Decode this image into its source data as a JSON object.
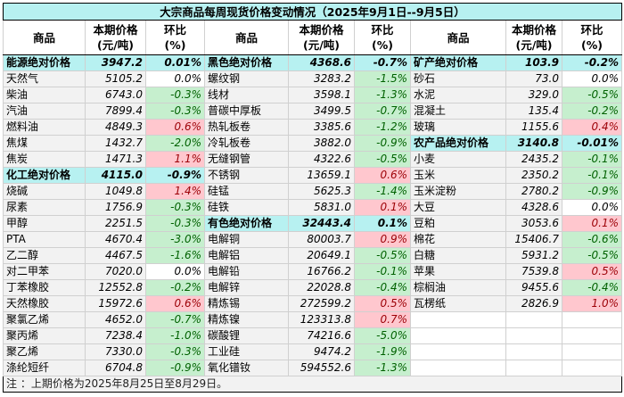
{
  "title": "大宗商品每周现货价格变动情况（2025年9月1日--9月5日）",
  "headers": {
    "name": "商品",
    "price": [
      "本期价格",
      "(元/吨)"
    ],
    "change": [
      "环比",
      "(%)"
    ]
  },
  "colors": {
    "group_bg": "#b7f1f1",
    "up_bg": "#ffc7ce",
    "up_text": "#9c0006",
    "down_bg": "#c6efce",
    "down_text": "#006100"
  },
  "columns": [
    [
      {
        "name": "能源绝对价格",
        "price": "3947.2",
        "change": "0.01%",
        "group": true
      },
      {
        "name": "天然气",
        "price": "5105.2",
        "change": "0.0%"
      },
      {
        "name": "柴油",
        "price": "6743.0",
        "change": "-0.3%"
      },
      {
        "name": "汽油",
        "price": "7899.4",
        "change": "-0.3%"
      },
      {
        "name": "燃料油",
        "price": "4849.3",
        "change": "0.6%"
      },
      {
        "name": "焦煤",
        "price": "1432.7",
        "change": "-2.0%"
      },
      {
        "name": "焦炭",
        "price": "1471.3",
        "change": "1.1%"
      },
      {
        "name": "化工绝对价格",
        "price": "4115.0",
        "change": "-0.9%",
        "group": true
      },
      {
        "name": "烧碱",
        "price": "1049.8",
        "change": "1.4%"
      },
      {
        "name": "尿素",
        "price": "1756.9",
        "change": "-0.3%"
      },
      {
        "name": "甲醇",
        "price": "2251.5",
        "change": "-0.3%"
      },
      {
        "name": "PTA",
        "price": "4670.4",
        "change": "-3.0%"
      },
      {
        "name": "乙二醇",
        "price": "4467.5",
        "change": "-1.6%"
      },
      {
        "name": "对二甲苯",
        "price": "7020.0",
        "change": "0.0%"
      },
      {
        "name": "丁苯橡胶",
        "price": "12552.8",
        "change": "-0.2%"
      },
      {
        "name": "天然橡胶",
        "price": "15972.6",
        "change": "0.6%"
      },
      {
        "name": "聚氯乙烯",
        "price": "4652.0",
        "change": "-0.7%"
      },
      {
        "name": "聚丙烯",
        "price": "7238.4",
        "change": "-1.0%"
      },
      {
        "name": "聚乙烯",
        "price": "7330.0",
        "change": "-0.3%"
      },
      {
        "name": "涤纶短纤",
        "price": "6704.8",
        "change": "-0.9%"
      }
    ],
    [
      {
        "name": "黑色绝对价格",
        "price": "4368.6",
        "change": "-0.7%",
        "group": true
      },
      {
        "name": "螺纹钢",
        "price": "3283.2",
        "change": "-1.5%"
      },
      {
        "name": "线材",
        "price": "3598.1",
        "change": "-1.3%"
      },
      {
        "name": "普碳中厚板",
        "price": "3499.5",
        "change": "-0.7%"
      },
      {
        "name": "热轧板卷",
        "price": "3385.6",
        "change": "-1.2%"
      },
      {
        "name": "冷轧板卷",
        "price": "3882.0",
        "change": "-0.9%"
      },
      {
        "name": "无缝钢管",
        "price": "4322.6",
        "change": "-0.5%"
      },
      {
        "name": "不锈钢",
        "price": "13659.1",
        "change": "0.6%"
      },
      {
        "name": "硅锰",
        "price": "5625.3",
        "change": "-1.4%"
      },
      {
        "name": "硅铁",
        "price": "5831.0",
        "change": "0.1%"
      },
      {
        "name": "有色绝对价格",
        "price": "32443.4",
        "change": "0.1%",
        "group": true
      },
      {
        "name": "电解铜",
        "price": "80003.7",
        "change": "0.9%"
      },
      {
        "name": "电解铝",
        "price": "20649.1",
        "change": "-0.5%"
      },
      {
        "name": "电解铅",
        "price": "16766.2",
        "change": "-0.1%"
      },
      {
        "name": "电解锌",
        "price": "22028.8",
        "change": "-0.4%"
      },
      {
        "name": "精炼锡",
        "price": "272599.2",
        "change": "0.5%"
      },
      {
        "name": "精炼镍",
        "price": "123313.8",
        "change": "0.7%"
      },
      {
        "name": "碳酸锂",
        "price": "74216.6",
        "change": "-5.0%"
      },
      {
        "name": "工业硅",
        "price": "9474.2",
        "change": "-1.9%"
      },
      {
        "name": "氧化镨钕",
        "price": "594552.6",
        "change": "-1.3%"
      }
    ],
    [
      {
        "name": "矿产绝对价格",
        "price": "103.9",
        "change": "-0.2%",
        "group": true
      },
      {
        "name": "砂石",
        "price": "73.0",
        "change": "0.0%"
      },
      {
        "name": "水泥",
        "price": "329.0",
        "change": "-0.5%"
      },
      {
        "name": "混凝土",
        "price": "135.4",
        "change": "-0.2%"
      },
      {
        "name": "玻璃",
        "price": "1155.6",
        "change": "0.4%"
      },
      {
        "name": "农产品绝对价格",
        "price": "3140.8",
        "change": "-0.01%",
        "group": true
      },
      {
        "name": "小麦",
        "price": "2435.2",
        "change": "-0.1%"
      },
      {
        "name": "玉米",
        "price": "2350.2",
        "change": "-0.1%"
      },
      {
        "name": "玉米淀粉",
        "price": "2780.2",
        "change": "-0.9%"
      },
      {
        "name": "大豆",
        "price": "4328.6",
        "change": "0.0%"
      },
      {
        "name": "豆粕",
        "price": "3053.6",
        "change": "0.1%"
      },
      {
        "name": "棉花",
        "price": "15406.7",
        "change": "-0.6%"
      },
      {
        "name": "白糖",
        "price": "5931.2",
        "change": "-0.5%"
      },
      {
        "name": "苹果",
        "price": "7539.8",
        "change": "0.5%"
      },
      {
        "name": "棕榈油",
        "price": "9455.6",
        "change": "-0.4%"
      },
      {
        "name": "瓦楞纸",
        "price": "2826.9",
        "change": "1.0%"
      }
    ]
  ],
  "footnote": "注 ：上期价格为2025年8月25日至8月29日。"
}
